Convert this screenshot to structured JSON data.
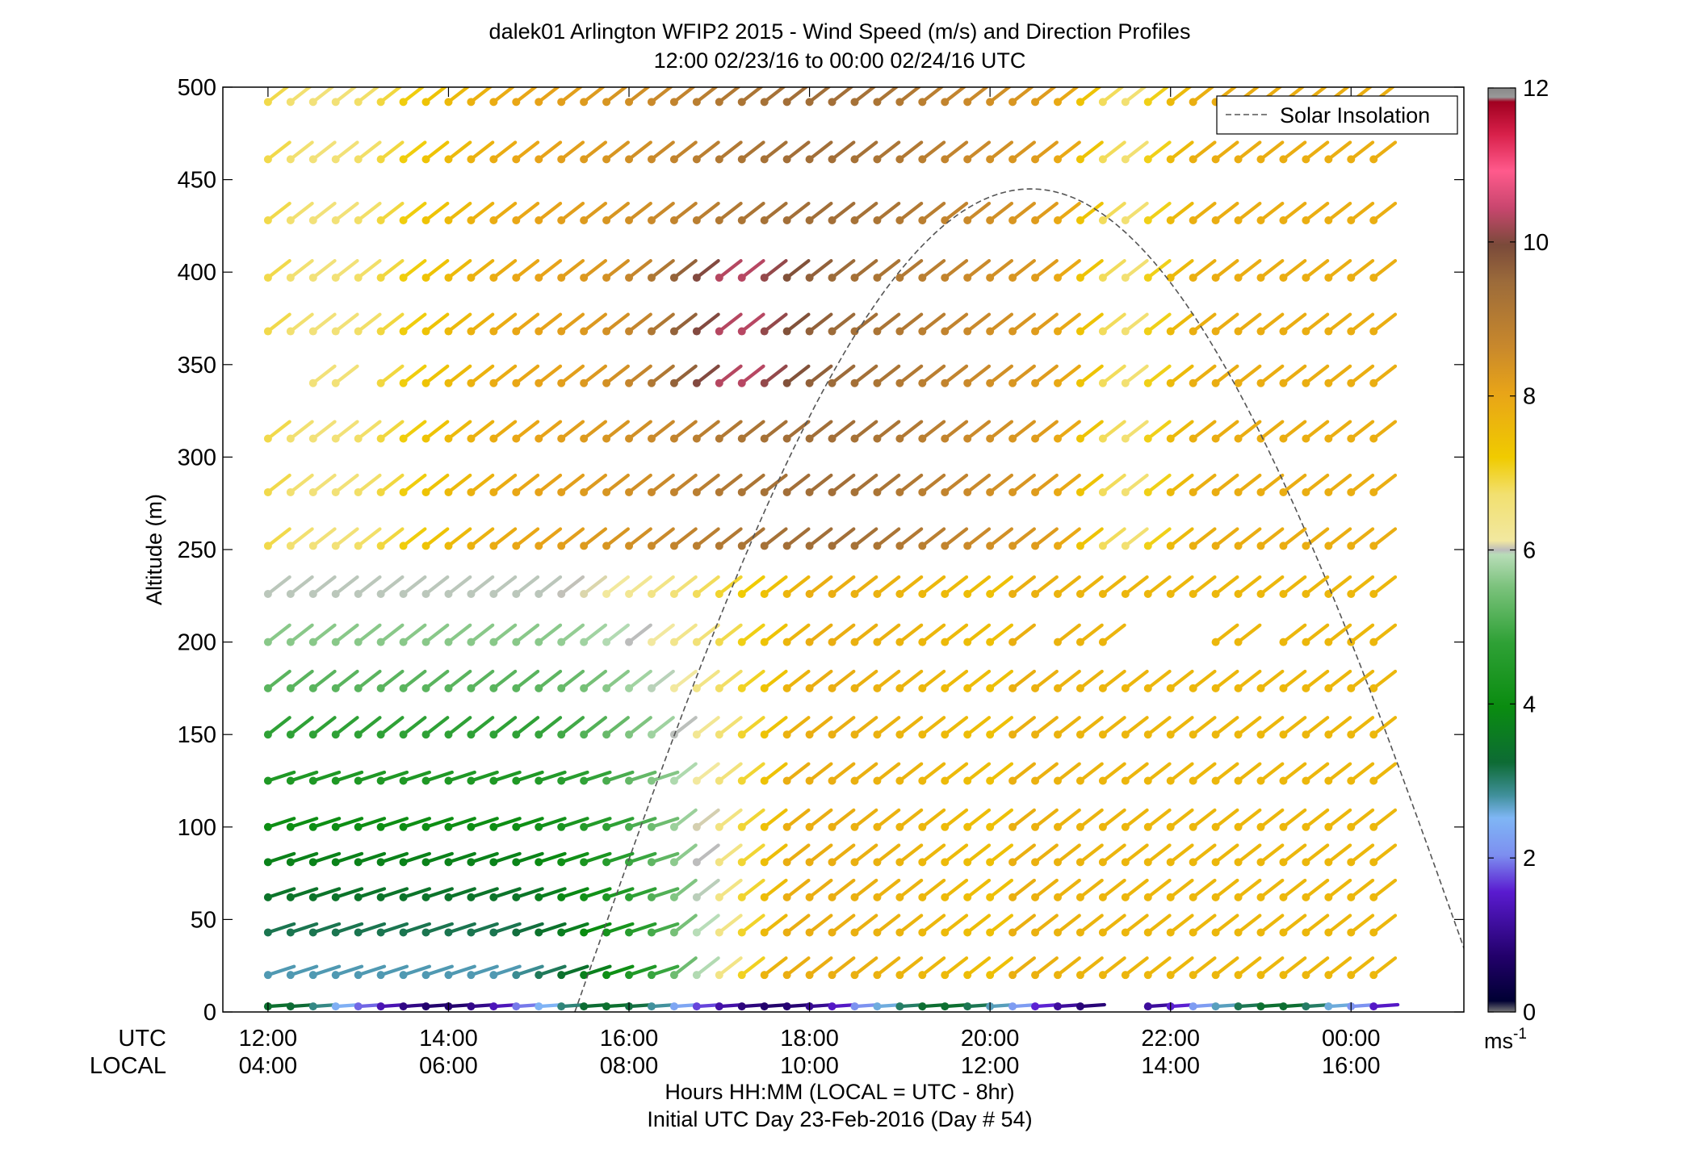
{
  "chart_data": {
    "type": "wind-barb profile",
    "title": [
      "dalek01 Arlington WFIP2 2015 - Wind Speed (m/s) and Direction Profiles",
      "12:00 02/23/16 to 00:00 02/24/16  UTC"
    ],
    "ylabel": "Altitude (m)",
    "xlabel": [
      "Hours HH:MM  (LOCAL = UTC - 8hr)",
      "Initial UTC Day 23-Feb-2016 (Day # 54)"
    ],
    "x_row_labels": [
      "UTC",
      "LOCAL"
    ],
    "x_utc_ticks": [
      "12:00",
      "14:00",
      "16:00",
      "18:00",
      "20:00",
      "22:00",
      "00:00"
    ],
    "x_local_ticks": [
      "04:00",
      "06:00",
      "08:00",
      "10:00",
      "12:00",
      "14:00",
      "16:00"
    ],
    "x_tick_hours": [
      12,
      14,
      16,
      18,
      20,
      22,
      24
    ],
    "xlim_hours": [
      11.5,
      25.25
    ],
    "ylim": [
      0,
      500
    ],
    "y_ticks": [
      "0",
      "50",
      "100",
      "150",
      "200",
      "250",
      "300",
      "350",
      "400",
      "450",
      "500"
    ],
    "y_tick_values": [
      0,
      50,
      100,
      150,
      200,
      250,
      300,
      350,
      400,
      450,
      500
    ],
    "altitudes_m": [
      3,
      20,
      43,
      62,
      81,
      100,
      125,
      150,
      175,
      200,
      226,
      252,
      281,
      310,
      340,
      368,
      397,
      428,
      461,
      492
    ],
    "time_start_hours": 12.0,
    "time_step_hours": 0.25,
    "colorbar": {
      "min": 0,
      "max": 12,
      "ticks": [
        "0",
        "2",
        "4",
        "6",
        "8",
        "10",
        "12"
      ],
      "unit": "ms",
      "unit_exponent": "-1"
    },
    "legend": {
      "label": "Solar Insolation",
      "position": "top-right"
    },
    "solar_insolation": {
      "x_hours": [
        15.4,
        20.25,
        25.5
      ],
      "peak_altitude_m": 445
    }
  }
}
